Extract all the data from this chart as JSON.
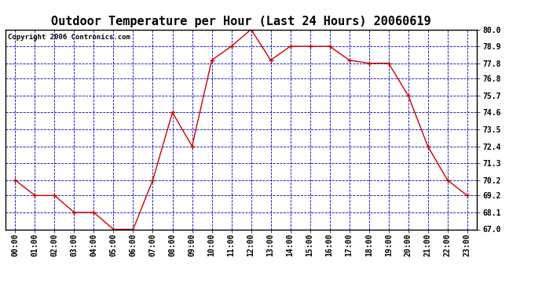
{
  "title": "Outdoor Temperature per Hour (Last 24 Hours) 20060619",
  "copyright_text": "Copyright 2006 Contronics.com",
  "hours": [
    "00:00",
    "01:00",
    "02:00",
    "03:00",
    "04:00",
    "05:00",
    "06:00",
    "07:00",
    "08:00",
    "09:00",
    "10:00",
    "11:00",
    "12:00",
    "13:00",
    "14:00",
    "15:00",
    "16:00",
    "17:00",
    "18:00",
    "19:00",
    "20:00",
    "21:00",
    "22:00",
    "23:00"
  ],
  "temps": [
    70.2,
    69.2,
    69.2,
    68.1,
    68.1,
    67.0,
    67.0,
    70.2,
    74.6,
    72.4,
    78.0,
    78.9,
    80.0,
    78.0,
    78.9,
    78.9,
    78.9,
    78.0,
    77.8,
    77.8,
    75.7,
    72.4,
    70.2,
    69.2
  ],
  "ylim_min": 67.0,
  "ylim_max": 80.0,
  "yticks": [
    67.0,
    68.1,
    69.2,
    70.2,
    71.3,
    72.4,
    73.5,
    74.6,
    75.7,
    76.8,
    77.8,
    78.9,
    80.0
  ],
  "line_color": "#cc0000",
  "marker_color": "#cc0000",
  "bg_color": "#ffffff",
  "plot_bg_color": "#ffffff",
  "grid_color": "#0000bb",
  "title_fontsize": 11,
  "tick_fontsize": 7,
  "copyright_fontsize": 6.5
}
